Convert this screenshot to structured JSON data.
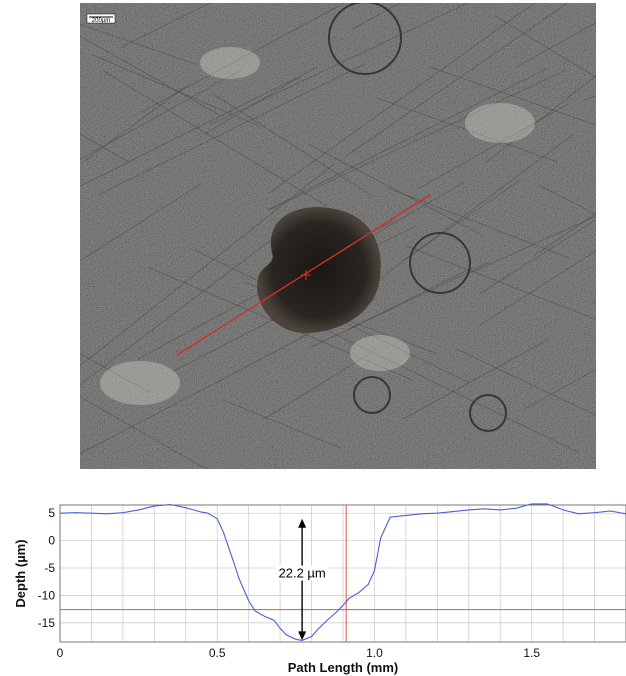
{
  "image": {
    "scale_bar_label": "200µm",
    "info_lines": [
      "",
      "",
      ""
    ],
    "line_color": "#d0302a"
  },
  "chart_data": {
    "type": "line",
    "xlabel": "Path Length (mm)",
    "ylabel": "Depth (µm)",
    "xlim": [
      0,
      1.8
    ],
    "ylim": [
      -18.5,
      6.5
    ],
    "xticks": [
      0,
      0.5,
      1.0,
      1.5
    ],
    "xtick_labels": [
      "0",
      "0.5",
      "1.0",
      "1.5"
    ],
    "yticks": [
      5,
      0,
      -5,
      -10,
      -15
    ],
    "ytick_labels": [
      "5",
      "0",
      "-5",
      "-10",
      "-15"
    ],
    "grid": true,
    "series": [
      {
        "color": "#4a5fd6",
        "x": [
          0,
          0.05,
          0.1,
          0.15,
          0.2,
          0.25,
          0.3,
          0.35,
          0.4,
          0.45,
          0.47,
          0.5,
          0.52,
          0.55,
          0.57,
          0.6,
          0.62,
          0.65,
          0.68,
          0.7,
          0.72,
          0.75,
          0.77,
          0.8,
          0.82,
          0.85,
          0.88,
          0.9,
          0.92,
          0.95,
          0.98,
          1.0,
          1.02,
          1.05,
          1.1,
          1.15,
          1.2,
          1.25,
          1.3,
          1.35,
          1.4,
          1.45,
          1.5,
          1.55,
          1.6,
          1.65,
          1.7,
          1.75,
          1.8
        ],
        "y": [
          5.0,
          5.1,
          5.0,
          4.9,
          5.1,
          5.6,
          6.3,
          6.6,
          6.0,
          5.2,
          5.0,
          4.0,
          1.5,
          -3.5,
          -7.0,
          -11.0,
          -12.8,
          -13.8,
          -14.5,
          -16.0,
          -17.2,
          -18.0,
          -18.2,
          -17.5,
          -16.2,
          -14.5,
          -13.0,
          -11.8,
          -10.5,
          -9.5,
          -8.0,
          -5.5,
          0.5,
          4.3,
          4.6,
          4.9,
          5.0,
          5.3,
          5.6,
          5.8,
          5.6,
          5.9,
          6.7,
          6.7,
          5.6,
          4.9,
          5.1,
          5.4,
          4.9
        ]
      }
    ],
    "reference_lines": {
      "vertical_x": 0.91,
      "horizontal_y": -12.6,
      "color": "#e25050"
    },
    "annotation": {
      "text": "22.2 µm",
      "x": 0.77,
      "from_y": -18.2,
      "to_y": 4.0
    }
  }
}
